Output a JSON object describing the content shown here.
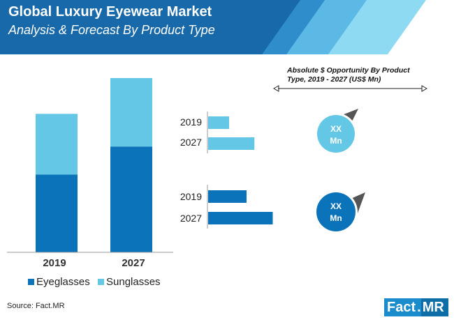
{
  "header": {
    "title": "Global Luxury Eyewear Market",
    "subtitle": "Analysis & Forecast By Product Type"
  },
  "colors": {
    "eyeglasses": "#0a73ba",
    "sunglasses": "#63c7e5",
    "header_dark": "#1769a9",
    "header_light": "#8fdaf3"
  },
  "chart_data": [
    {
      "type": "bar",
      "stacked": true,
      "title": "",
      "categories": [
        "2019",
        "2027"
      ],
      "series": [
        {
          "name": "Eyeglasses",
          "values": [
            50,
            68
          ]
        },
        {
          "name": "Sunglasses",
          "values": [
            39,
            44
          ]
        }
      ],
      "ylim": [
        0,
        112
      ],
      "xlabel": "",
      "ylabel": "",
      "legend": "bottom"
    },
    {
      "type": "bar",
      "orientation": "horizontal",
      "series_name": "Sunglasses",
      "categories": [
        "2019",
        "2027"
      ],
      "values": [
        24,
        53
      ],
      "xlim": [
        0,
        80
      ]
    },
    {
      "type": "bar",
      "orientation": "horizontal",
      "series_name": "Eyeglasses",
      "categories": [
        "2019",
        "2027"
      ],
      "values": [
        44,
        74
      ],
      "xlim": [
        0,
        80
      ]
    }
  ],
  "opportunity": {
    "title": "Absolute $ Opportunity By Product Type, 2019 - 2027 (US$ Mn)",
    "badges": [
      {
        "line1": "XX",
        "line2": "Mn"
      },
      {
        "line1": "XX",
        "line2": "Mn"
      }
    ]
  },
  "source": "Source: Fact.MR",
  "logo": {
    "part1": "Fact",
    "part2": "MR"
  }
}
